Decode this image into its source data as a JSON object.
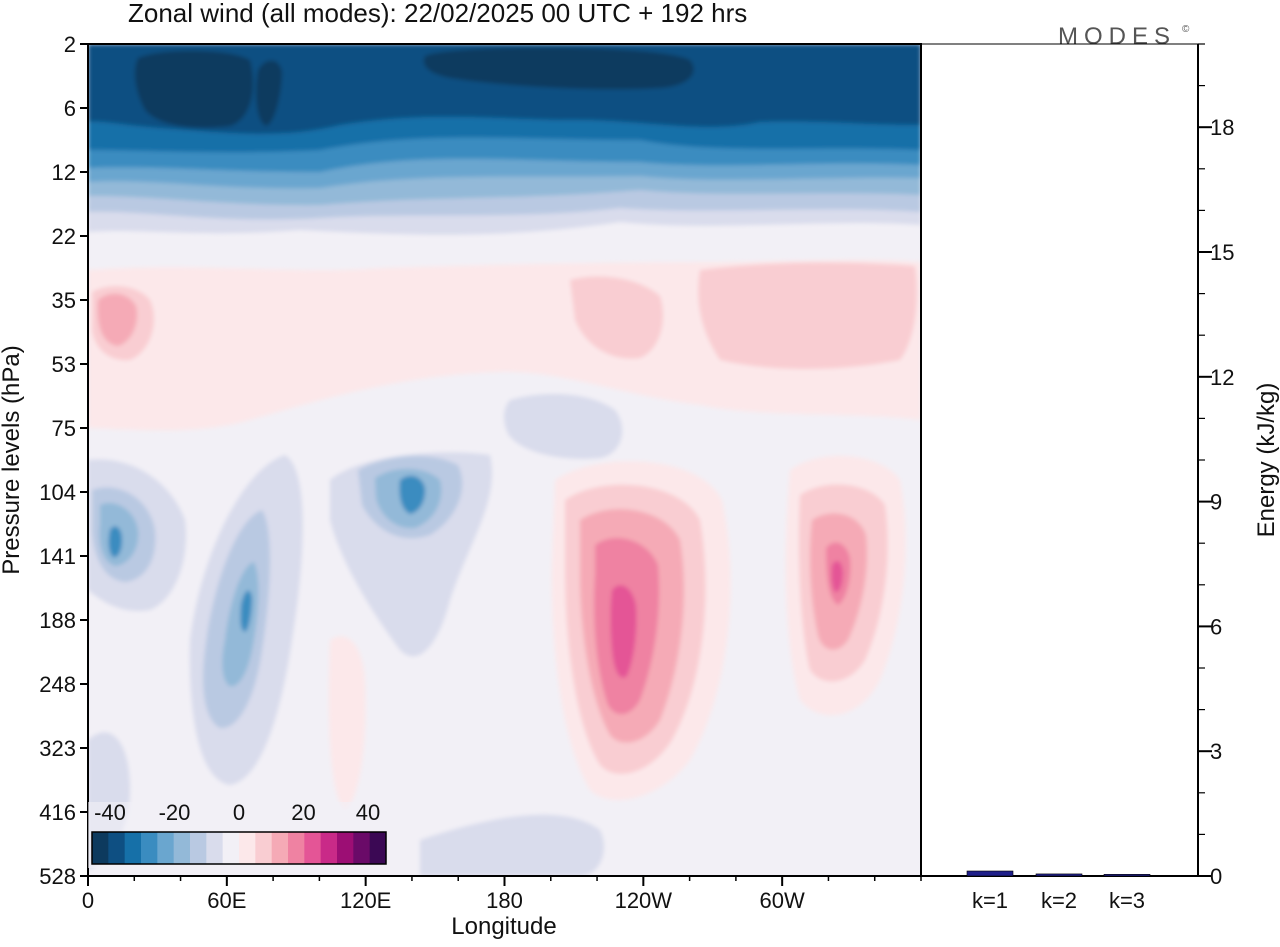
{
  "title": "Zonal wind (all modes):  22/02/2025  00 UTC  + 192 hrs",
  "brand": "MODES",
  "brand_mark": "©",
  "chart_data": [
    {
      "type": "heatmap",
      "title": "Zonal wind (all modes):  22/02/2025  00 UTC  + 192 hrs",
      "xlabel": "Longitude",
      "ylabel": "Pressure levels (hPa)",
      "x_ticks": [
        "0",
        "60E",
        "120E",
        "180",
        "120W",
        "60W"
      ],
      "x_tick_degrees": [
        0,
        60,
        120,
        180,
        240,
        300
      ],
      "xlim": [
        0,
        360
      ],
      "y_ticks": [
        "2",
        "6",
        "12",
        "22",
        "35",
        "53",
        "75",
        "104",
        "141",
        "188",
        "248",
        "323",
        "416",
        "528"
      ],
      "colorbar": {
        "tick_labels": [
          "-40",
          "-20",
          "0",
          "20",
          "40"
        ],
        "range": [
          -50,
          50
        ],
        "colors": [
          "#0d3a5e",
          "#0e4f82",
          "#1670a8",
          "#3a8cc0",
          "#6aa6cf",
          "#93b9d8",
          "#b9c9e2",
          "#d9dcec",
          "#f2f0f6",
          "#fce8ea",
          "#f9cdd2",
          "#f5aab6",
          "#ef82a2",
          "#e45596",
          "#c92a88",
          "#9c0e74",
          "#6a0a68",
          "#3b0854"
        ]
      },
      "regions": [
        {
          "feature": "strong easterly stratosphere band",
          "pressure_hPa": [
            2,
            12
          ],
          "value": -40
        },
        {
          "feature": "westerly jet near 110W",
          "center_lon": 245,
          "center_hPa": 180,
          "value": 30
        },
        {
          "feature": "westerly jet near 30W",
          "center_lon": 325,
          "center_hPa": 160,
          "value": 25
        },
        {
          "feature": "easterly core near 65E",
          "center_lon": 67,
          "center_hPa": 190,
          "value": -15
        },
        {
          "feature": "easterly core near 140E",
          "center_lon": 140,
          "center_hPa": 110,
          "value": -20
        },
        {
          "feature": "easterly core near 10E",
          "center_lon": 12,
          "center_hPa": 135,
          "value": -15
        },
        {
          "feature": "weak westerly layer",
          "pressure_hPa": [
            25,
            70
          ],
          "value": 6
        }
      ]
    },
    {
      "type": "bar",
      "ylabel": "Energy (kJ/kg)",
      "categories": [
        "k=1",
        "k=2",
        "k=3"
      ],
      "values": [
        0.12,
        0.05,
        0.04
      ],
      "ylim": [
        0,
        20
      ],
      "y_ticks": [
        "0",
        "3",
        "6",
        "9",
        "12",
        "15",
        "18"
      ],
      "y_tick_values": [
        0,
        3,
        6,
        9,
        12,
        15,
        18
      ]
    }
  ]
}
